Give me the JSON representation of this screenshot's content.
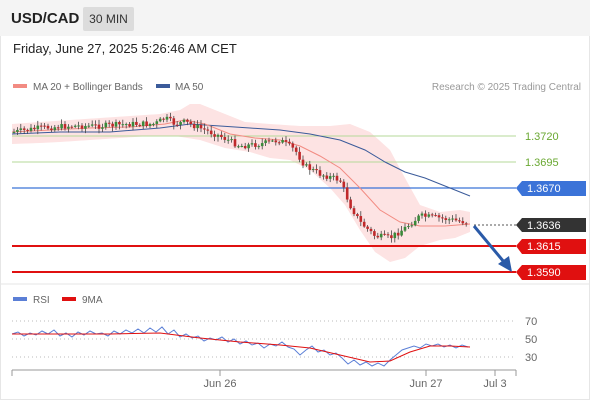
{
  "header": {
    "pair": "USD/CAD",
    "timeframe": "30 MIN",
    "datetime": "Friday, June 27, 2025 5:26:46 AM CET"
  },
  "legend": {
    "ma20_label": "MA 20 + Bollinger Bands",
    "ma50_label": "MA 50",
    "copyright": "Research © 2025 Trading Central",
    "ma20_color": "#f28b82",
    "ma50_color": "#3b5b9a"
  },
  "price_levels": [
    {
      "label": "1.3720",
      "kind": "target",
      "color": "#6aa832"
    },
    {
      "label": "1.3695",
      "kind": "target",
      "color": "#6aa832"
    },
    {
      "label": "1.3670",
      "kind": "pivot",
      "color": "#3b73d8"
    },
    {
      "label": "1.3636",
      "kind": "current",
      "color": "#333333"
    },
    {
      "label": "1.3615",
      "kind": "support",
      "color": "#e01010"
    },
    {
      "label": "1.3590",
      "kind": "support",
      "color": "#e01010"
    }
  ],
  "rsi_panel": {
    "rsi_label": "RSI",
    "ma_label": "9MA",
    "rsi_color": "#5b7fd6",
    "ma_color": "#e01010",
    "levels": [
      "70",
      "50",
      "30"
    ]
  },
  "x_axis": {
    "labels": [
      "Jun 26",
      "Jun 27",
      "Jul 3"
    ]
  },
  "icons": {
    "forecast_arrow": "down-arrow-icon"
  }
}
